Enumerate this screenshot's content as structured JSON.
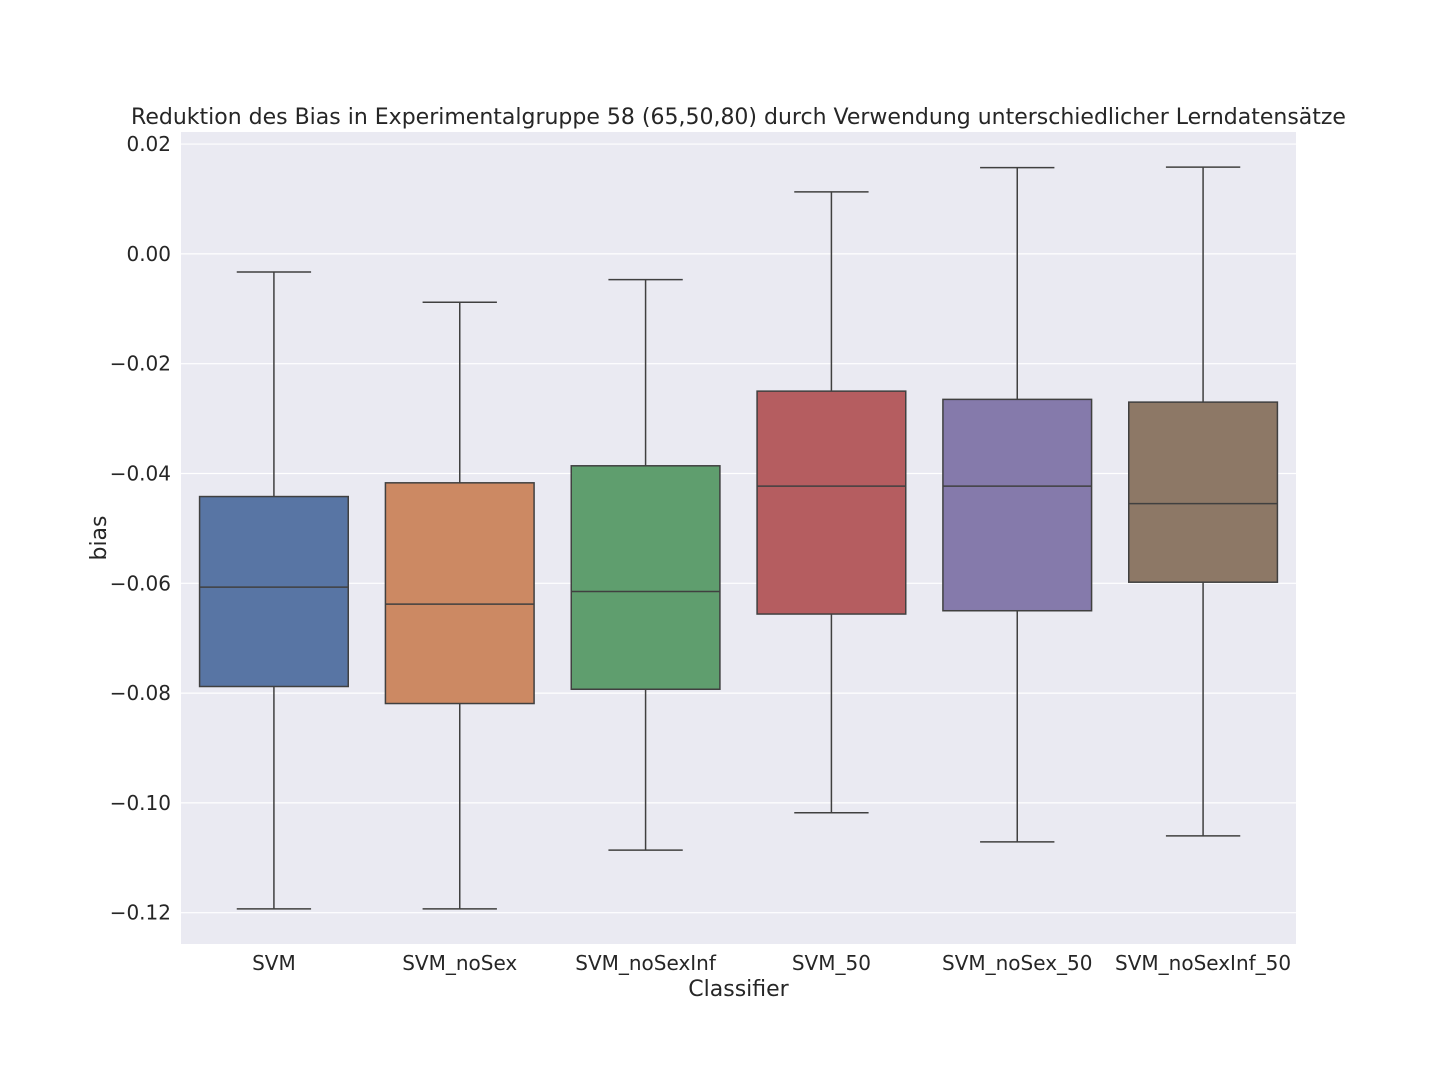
{
  "chart_data": {
    "type": "box",
    "title": "Reduktion des Bias in Experimentalgruppe 58 (65,50,80) durch Verwendung unterschiedlicher Lerndatensätze",
    "xlabel": "Classifier",
    "ylabel": "bias",
    "ylim": [
      -0.1257,
      0.0222
    ],
    "yticks": [
      0.02,
      0.0,
      -0.02,
      -0.04,
      -0.06,
      -0.08,
      -0.1,
      -0.12
    ],
    "ytick_labels": [
      "0.02",
      "0.00",
      "−0.02",
      "−0.04",
      "−0.06",
      "−0.08",
      "−0.10",
      "−0.12"
    ],
    "grid": true,
    "background": "#eaeaf2",
    "categories": [
      "SVM",
      "SVM_noSex",
      "SVM_noSexInf",
      "SVM_50",
      "SVM_noSex_50",
      "SVM_noSexInf_50"
    ],
    "boxes": [
      {
        "name": "SVM",
        "whislo": -0.1193,
        "q1": -0.0788,
        "med": -0.0607,
        "q3": -0.0442,
        "whishi": -0.0033,
        "color": "#5875a4"
      },
      {
        "name": "SVM_noSex",
        "whislo": -0.1193,
        "q1": -0.0819,
        "med": -0.0638,
        "q3": -0.0417,
        "whishi": -0.0088,
        "color": "#cc8963"
      },
      {
        "name": "SVM_noSexInf",
        "whislo": -0.1086,
        "q1": -0.0793,
        "med": -0.0615,
        "q3": -0.0386,
        "whishi": -0.0047,
        "color": "#5f9e6e"
      },
      {
        "name": "SVM_50",
        "whislo": -0.1018,
        "q1": -0.0656,
        "med": -0.0423,
        "q3": -0.025,
        "whishi": 0.0113,
        "color": "#b55d60"
      },
      {
        "name": "SVM_noSex_50",
        "whislo": -0.1071,
        "q1": -0.065,
        "med": -0.0423,
        "q3": -0.0265,
        "whishi": 0.0157,
        "color": "#857aab"
      },
      {
        "name": "SVM_noSexInf_50",
        "whislo": -0.106,
        "q1": -0.0598,
        "med": -0.0455,
        "q3": -0.027,
        "whishi": 0.0158,
        "color": "#8d7866"
      }
    ]
  }
}
